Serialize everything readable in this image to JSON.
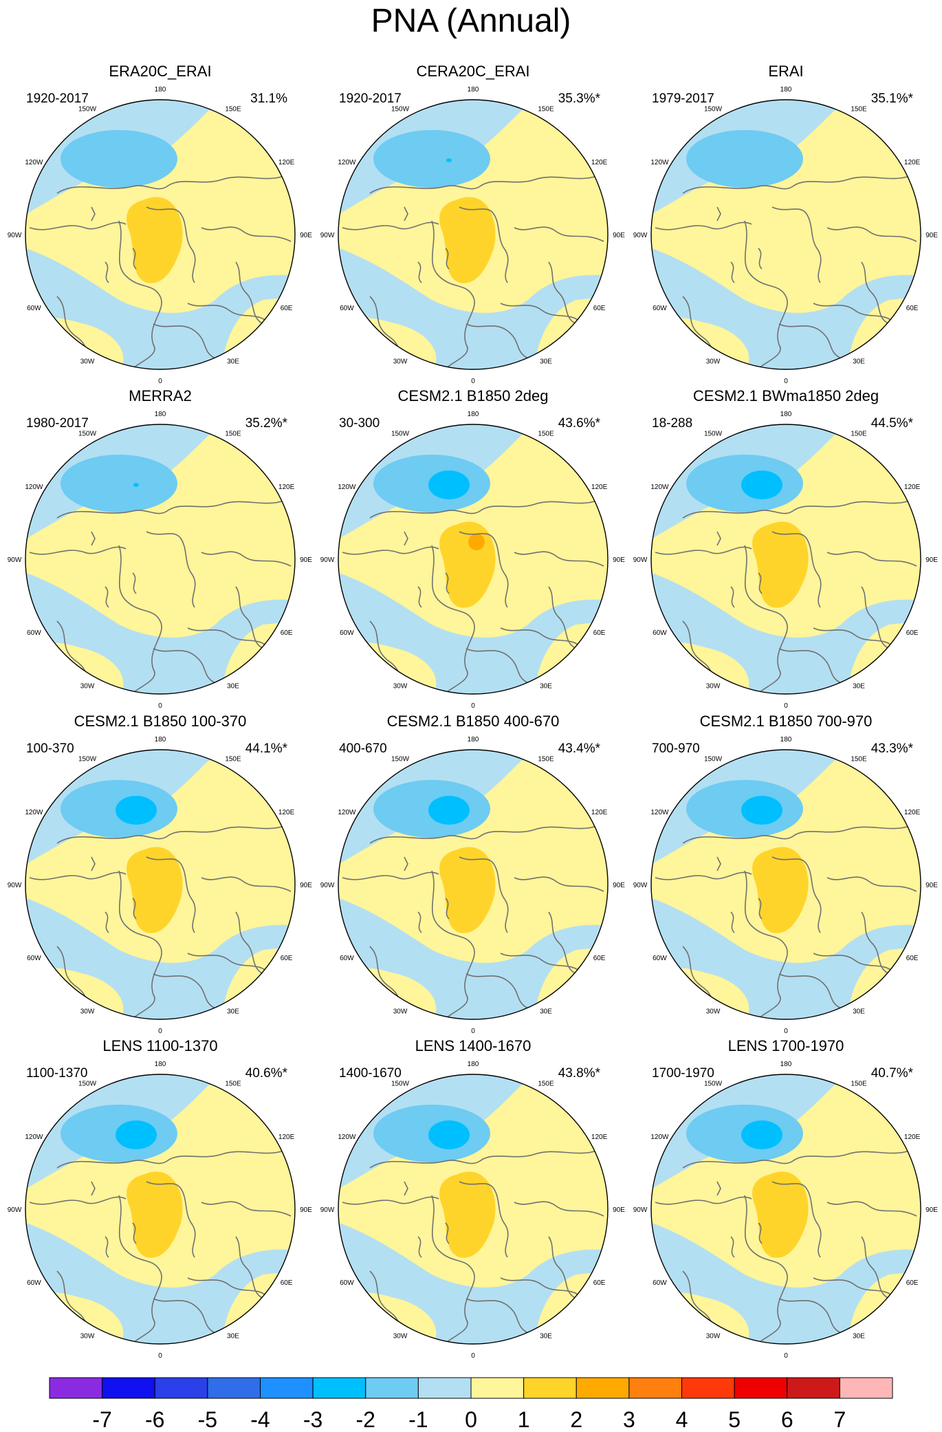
{
  "figure": {
    "title": "PNA (Annual)"
  },
  "longitude_labels": [
    "180",
    "150E",
    "120E",
    "90E",
    "60E",
    "30E",
    "0",
    "30W",
    "60W",
    "90W",
    "120W",
    "150W"
  ],
  "panels": [
    {
      "title": "ERA20C_ERAI",
      "period": "1920-2017",
      "variance": "31.1%",
      "max_pos": 2,
      "max_neg": -2
    },
    {
      "title": "CERA20C_ERAI",
      "period": "1920-2017",
      "variance": "35.3%*",
      "max_pos": 2,
      "max_neg": -3
    },
    {
      "title": "ERAI",
      "period": "1979-2017",
      "variance": "35.1%*",
      "max_pos": 1,
      "max_neg": -2
    },
    {
      "title": "MERRA2",
      "period": "1980-2017",
      "variance": "35.2%*",
      "max_pos": 1,
      "max_neg": -3
    },
    {
      "title": "CESM2.1 B1850 2deg",
      "period": "30-300",
      "variance": "43.6%*",
      "max_pos": 3,
      "max_neg": -3
    },
    {
      "title": "CESM2.1 BWma1850 2deg",
      "period": "18-288",
      "variance": "44.5%*",
      "max_pos": 2,
      "max_neg": -3
    },
    {
      "title": "CESM2.1 B1850 100-370",
      "period": "100-370",
      "variance": "44.1%*",
      "max_pos": 2,
      "max_neg": -3
    },
    {
      "title": "CESM2.1 B1850 400-670",
      "period": "400-670",
      "variance": "43.4%*",
      "max_pos": 2,
      "max_neg": -3
    },
    {
      "title": "CESM2.1 B1850 700-970",
      "period": "700-970",
      "variance": "43.3%*",
      "max_pos": 2,
      "max_neg": -3
    },
    {
      "title": "LENS 1100-1370",
      "period": "1100-1370",
      "variance": "40.6%*",
      "max_pos": 2,
      "max_neg": -3
    },
    {
      "title": "LENS 1400-1670",
      "period": "1400-1670",
      "variance": "43.8%*",
      "max_pos": 2,
      "max_neg": -3
    },
    {
      "title": "LENS 1700-1970",
      "period": "1700-1970",
      "variance": "40.7%*",
      "max_pos": 2,
      "max_neg": -3
    }
  ],
  "colorbar": {
    "labels": [
      "-7",
      "-6",
      "-5",
      "-4",
      "-3",
      "-2",
      "-1",
      "0",
      "1",
      "2",
      "3",
      "4",
      "5",
      "6",
      "7"
    ],
    "colors": [
      "#8a2be2",
      "#1010f0",
      "#2a40e8",
      "#2f6ee8",
      "#1e90ff",
      "#00bfff",
      "#6ecbf2",
      "#b3dff2",
      "#fff59a",
      "#ffd42a",
      "#ffaa00",
      "#ff7f0f",
      "#ff3a0a",
      "#ee0000",
      "#cc1a1a",
      "#ffb6b6"
    ]
  },
  "colors": {
    "neg_1": "#b3dff2",
    "neg_2": "#6ecbf2",
    "neg_3": "#00bfff",
    "pos_1": "#fff59a",
    "pos_2": "#ffd42a",
    "pos_3": "#ffaa00",
    "coast": "#707070"
  }
}
